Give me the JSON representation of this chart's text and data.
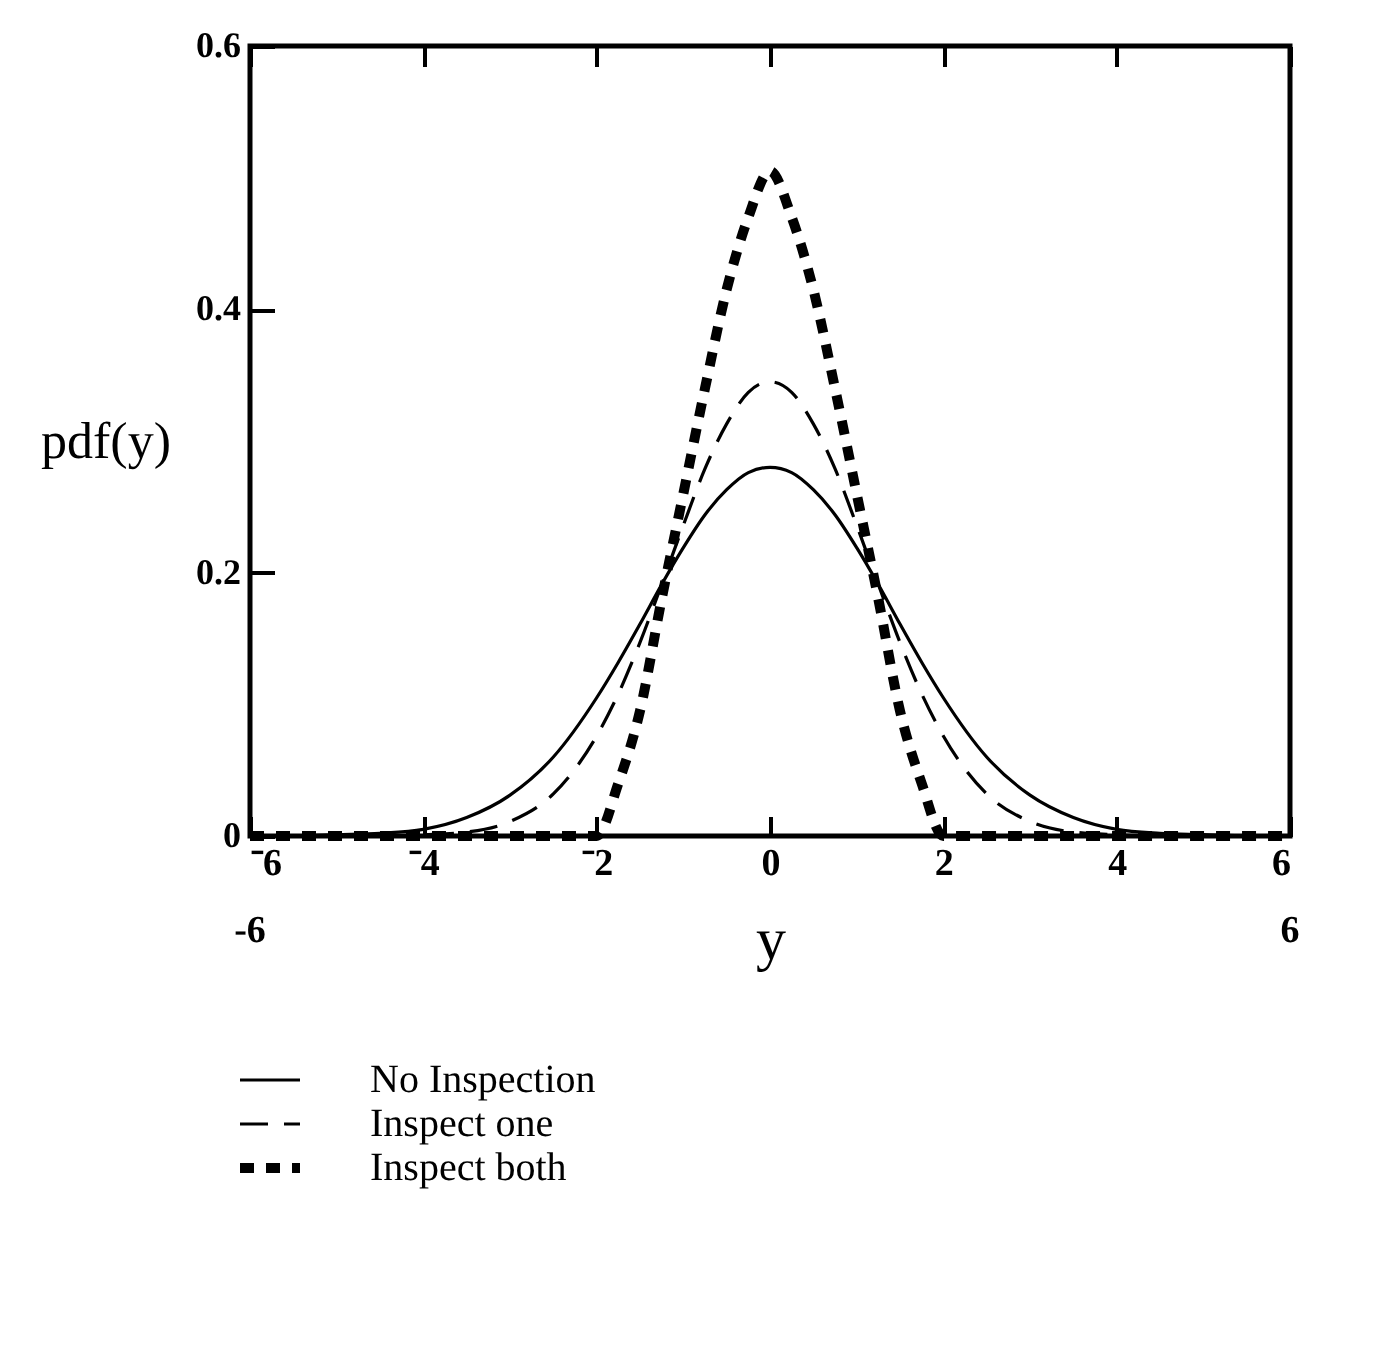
{
  "chart_data": {
    "type": "line",
    "xlabel": "y",
    "ylabel": "pdf(y)",
    "x": [
      -6,
      -5.5,
      -5,
      -4.5,
      -4,
      -3.5,
      -3,
      -2.5,
      -2,
      -1.75,
      -1.5,
      -1.25,
      -1,
      -0.75,
      -0.5,
      -0.25,
      0,
      0.25,
      0.5,
      0.75,
      1,
      1.25,
      1.5,
      1.75,
      2,
      2.5,
      3,
      3.5,
      4,
      4.5,
      5,
      5.5,
      6
    ],
    "series": [
      {
        "name": "No Inspection",
        "color": "#000000",
        "line_style": "solid",
        "values": [
          0,
          0,
          0.001,
          0.002,
          0.005,
          0.014,
          0.031,
          0.06,
          0.105,
          0.132,
          0.161,
          0.191,
          0.219,
          0.244,
          0.263,
          0.276,
          0.28,
          0.276,
          0.263,
          0.244,
          0.219,
          0.191,
          0.161,
          0.132,
          0.105,
          0.06,
          0.031,
          0.014,
          0.005,
          0.002,
          0.001,
          0,
          0
        ]
      },
      {
        "name": "Inspect one",
        "color": "#000000",
        "line_style": "dashed",
        "values": [
          0,
          0,
          0,
          0,
          0.001,
          0.003,
          0.011,
          0.032,
          0.076,
          0.108,
          0.147,
          0.191,
          0.236,
          0.279,
          0.313,
          0.337,
          0.345,
          0.337,
          0.313,
          0.279,
          0.236,
          0.191,
          0.147,
          0.108,
          0.076,
          0.032,
          0.011,
          0.003,
          0.001,
          0,
          0,
          0,
          0
        ]
      },
      {
        "name": "Inspect both",
        "color": "#000000",
        "line_style": "dotted",
        "values": [
          0,
          0,
          0,
          0,
          0,
          0,
          0,
          0,
          0,
          0.04,
          0.095,
          0.18,
          0.26,
          0.34,
          0.415,
          0.47,
          0.505,
          0.47,
          0.415,
          0.34,
          0.26,
          0.18,
          0.095,
          0.04,
          0,
          0,
          0,
          0,
          0,
          0,
          0,
          0,
          0
        ]
      }
    ],
    "xlim": [
      -6,
      6
    ],
    "xticks": [
      {
        "value": -6,
        "label": "⁻6"
      },
      {
        "value": -4,
        "label": "⁻4"
      },
      {
        "value": -2,
        "label": "⁻2"
      },
      0,
      2,
      4,
      6
    ],
    "x2lim": [
      -6,
      6
    ],
    "x2ticks": [
      {
        "value": -6,
        "label": "-6"
      },
      6
    ],
    "ylim": [
      0,
      0.6
    ],
    "yticks": [
      0,
      0.2,
      0.4,
      0.6
    ],
    "grid": false,
    "legend": "bottom"
  }
}
